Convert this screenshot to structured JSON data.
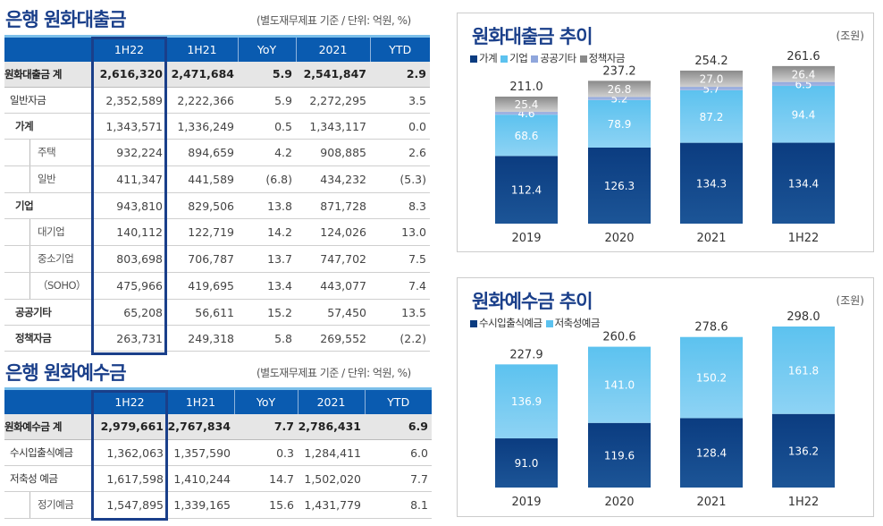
{
  "loans": {
    "title": "은행 원화대출금",
    "unit": "(별도재무제표 기준 / 단위: 억원, %)",
    "columns": [
      "",
      "1H22",
      "1H21",
      "YoY",
      "2021",
      "YTD"
    ],
    "rows": [
      {
        "label": "원화대출금 계",
        "type": "total",
        "values": [
          "2,616,320",
          "2,471,684",
          "5.9",
          "2,541,847",
          "2.9"
        ]
      },
      {
        "label": "일반자금",
        "type": "lvl0",
        "values": [
          "2,352,589",
          "2,222,366",
          "5.9",
          "2,272,295",
          "3.5"
        ]
      },
      {
        "label": "가계",
        "type": "lvl1",
        "values": [
          "1,343,571",
          "1,336,249",
          "0.5",
          "1,343,117",
          "0.0"
        ]
      },
      {
        "label": "주택",
        "type": "sub",
        "values": [
          "932,224",
          "894,659",
          "4.2",
          "908,885",
          "2.6"
        ]
      },
      {
        "label": "일반",
        "type": "sub",
        "values": [
          "411,347",
          "441,589",
          "(6.8)",
          "434,232",
          "(5.3)"
        ]
      },
      {
        "label": "기업",
        "type": "lvl1",
        "values": [
          "943,810",
          "829,506",
          "13.8",
          "871,728",
          "8.3"
        ]
      },
      {
        "label": "대기업",
        "type": "sub",
        "values": [
          "140,112",
          "122,719",
          "14.2",
          "124,026",
          "13.0"
        ]
      },
      {
        "label": "중소기업",
        "type": "sub",
        "values": [
          "803,698",
          "706,787",
          "13.7",
          "747,702",
          "7.5"
        ]
      },
      {
        "label": "（SOHO）",
        "type": "sub",
        "values": [
          "475,966",
          "419,695",
          "13.4",
          "443,077",
          "7.4"
        ]
      },
      {
        "label": "공공기타",
        "type": "lvl1",
        "values": [
          "65,208",
          "56,611",
          "15.2",
          "57,450",
          "13.5"
        ]
      },
      {
        "label": "정책자금",
        "type": "lvl1",
        "values": [
          "263,731",
          "249,318",
          "5.8",
          "269,552",
          "(2.2)"
        ]
      }
    ]
  },
  "deposits": {
    "title": "은행 원화예수금",
    "unit": "(별도재무제표 기준 / 단위: 억원, %)",
    "columns": [
      "",
      "1H22",
      "1H21",
      "YoY",
      "2021",
      "YTD"
    ],
    "rows": [
      {
        "label": "원화예수금 계",
        "type": "total",
        "values": [
          "2,979,661",
          "2,767,834",
          "7.7",
          "2,786,431",
          "6.9"
        ]
      },
      {
        "label": "수시입출식예금",
        "type": "lvl0",
        "values": [
          "1,362,063",
          "1,357,590",
          "0.3",
          "1,284,411",
          "6.0"
        ]
      },
      {
        "label": "저축성 예금",
        "type": "lvl0",
        "values": [
          "1,617,598",
          "1,410,244",
          "14.7",
          "1,502,020",
          "7.7"
        ]
      },
      {
        "label": "정기예금",
        "type": "sub",
        "values": [
          "1,547,895",
          "1,339,165",
          "15.6",
          "1,431,779",
          "8.1"
        ]
      }
    ]
  },
  "chart_data": [
    {
      "type": "bar",
      "stacked": true,
      "title": "원화대출금 추이",
      "unit": "(조원)",
      "categories": [
        "2019",
        "2020",
        "2021",
        "1H22"
      ],
      "series": [
        {
          "name": "가계",
          "color": "#0b3c80",
          "values": [
            112.4,
            126.3,
            134.3,
            134.4
          ]
        },
        {
          "name": "기업",
          "color": "#5cc2ef",
          "values": [
            68.6,
            78.9,
            87.2,
            94.4
          ]
        },
        {
          "name": "공공기타",
          "color": "#8fa6dc",
          "values": [
            4.6,
            5.2,
            5.7,
            6.5
          ]
        },
        {
          "name": "정책자금",
          "color": "#8a8a8a",
          "values": [
            25.4,
            26.8,
            27.0,
            26.4
          ]
        }
      ],
      "totals": [
        "211.0",
        "237.2",
        "254.2",
        "261.6"
      ],
      "legend": "top-left"
    },
    {
      "type": "bar",
      "stacked": true,
      "title": "원화예수금 추이",
      "unit": "(조원)",
      "categories": [
        "2019",
        "2020",
        "2021",
        "1H22"
      ],
      "series": [
        {
          "name": "수시입출식예금",
          "color": "#0b3c80",
          "values": [
            91.0,
            119.6,
            128.4,
            136.2
          ]
        },
        {
          "name": "저축성예금",
          "color": "#5cc2ef",
          "values": [
            136.9,
            141.0,
            150.2,
            161.8
          ]
        }
      ],
      "totals": [
        "227.9",
        "260.6",
        "278.6",
        "298.0"
      ],
      "legend": "top-left"
    }
  ]
}
